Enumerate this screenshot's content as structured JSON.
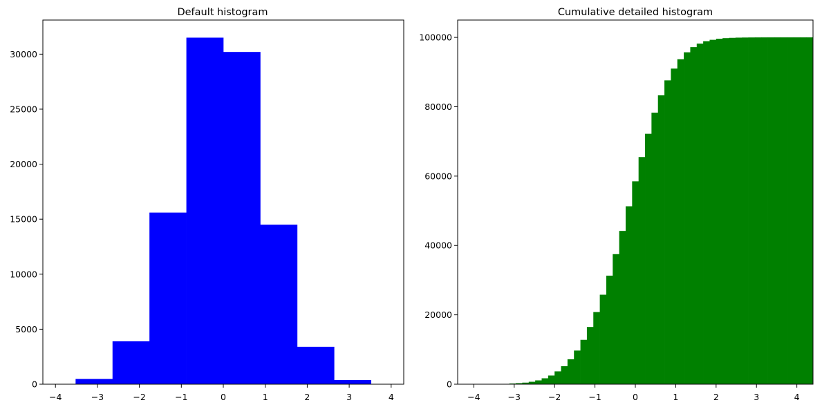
{
  "chart_data": [
    {
      "type": "bar",
      "title": "Default histogram",
      "xlabel": "",
      "ylabel": "",
      "xlim": [
        -4.3,
        4.3
      ],
      "ylim": [
        0,
        33100
      ],
      "xticks": [
        -4,
        -3,
        -2,
        -1,
        0,
        1,
        2,
        3,
        4
      ],
      "xtick_labels": [
        "−4",
        "−3",
        "−2",
        "−1",
        "0",
        "1",
        "2",
        "3",
        "4"
      ],
      "yticks": [
        0,
        5000,
        10000,
        15000,
        20000,
        25000,
        30000
      ],
      "ytick_labels": [
        "0",
        "5000",
        "10000",
        "15000",
        "20000",
        "25000",
        "30000"
      ],
      "bin_edges": [
        -4.4,
        -3.52,
        -2.64,
        -1.76,
        -0.88,
        0.0,
        0.88,
        1.76,
        2.64,
        3.52,
        4.4
      ],
      "values": [
        10,
        480,
        3900,
        15600,
        31500,
        30200,
        14500,
        3400,
        380,
        10
      ],
      "color": "#0000ff",
      "grid": false
    },
    {
      "type": "bar",
      "title": "Cumulative detailed histogram",
      "xlabel": "",
      "ylabel": "",
      "cumulative": true,
      "xlim": [
        -4.4,
        4.4
      ],
      "ylim": [
        0,
        105000
      ],
      "xticks": [
        -4,
        -3,
        -2,
        -1,
        0,
        1,
        2,
        3,
        4
      ],
      "xtick_labels": [
        "−4",
        "−3",
        "−2",
        "−1",
        "0",
        "1",
        "2",
        "3",
        "4"
      ],
      "yticks": [
        0,
        20000,
        40000,
        60000,
        80000,
        100000
      ],
      "ytick_labels": [
        "0",
        "20000",
        "40000",
        "60000",
        "80000",
        "100000"
      ],
      "bin_edges": [
        -4.4,
        -4.24,
        -4.08,
        -3.92,
        -3.76,
        -3.6,
        -3.44,
        -3.28,
        -3.12,
        -2.96,
        -2.8,
        -2.64,
        -2.48,
        -2.32,
        -2.16,
        -2.0,
        -1.84,
        -1.68,
        -1.52,
        -1.36,
        -1.2,
        -1.04,
        -0.88,
        -0.72,
        -0.56,
        -0.4,
        -0.24,
        -0.08,
        0.08,
        0.24,
        0.4,
        0.56,
        0.72,
        0.88,
        1.04,
        1.2,
        1.36,
        1.52,
        1.68,
        1.84,
        2.0,
        2.16,
        2.32,
        2.48,
        2.64,
        2.8,
        2.96,
        3.12,
        3.28,
        3.44,
        3.6,
        3.76,
        3.92,
        4.08,
        4.24,
        4.4
      ],
      "values": [
        0,
        0,
        5,
        10,
        15,
        30,
        60,
        100,
        200,
        300,
        450,
        700,
        1100,
        1700,
        2500,
        3700,
        5200,
        7200,
        9700,
        12800,
        16500,
        20800,
        25800,
        31300,
        37500,
        44200,
        51300,
        58500,
        65500,
        72200,
        78300,
        83300,
        87600,
        91000,
        93700,
        95700,
        97200,
        98200,
        98900,
        99300,
        99600,
        99780,
        99870,
        99930,
        99960,
        99980,
        99990,
        99995,
        99998,
        100000,
        100000,
        100000,
        100000,
        100000,
        100000
      ],
      "color": "#008000",
      "grid": false
    }
  ]
}
